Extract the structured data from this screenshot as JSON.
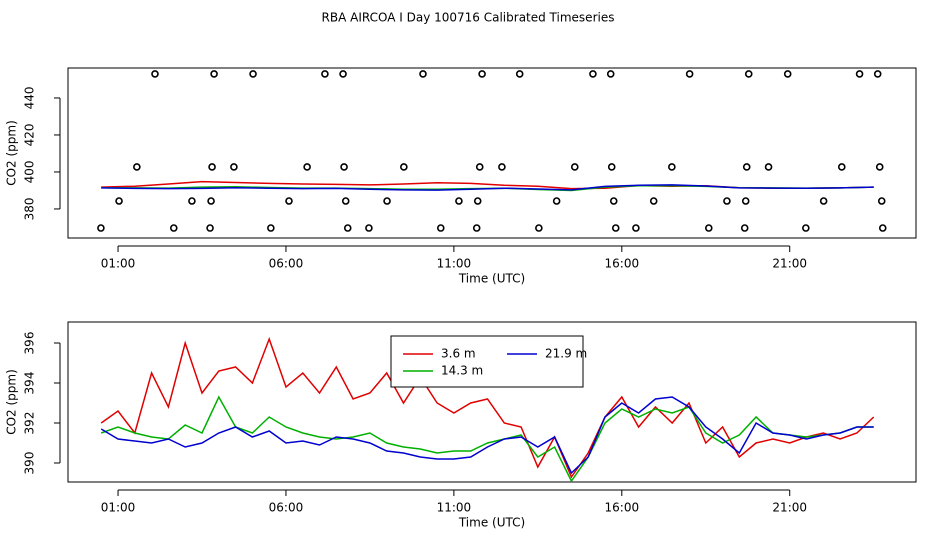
{
  "chart_data": [
    {
      "type": "line",
      "title": "RBA AIRCOA I  Day 100716  Calibrated Timeseries",
      "xlabel": "Time (UTC)",
      "ylabel": "CO2 (ppm)",
      "xlim": [
        -0.49,
        24.76
      ],
      "ylim": [
        364.3,
        456.2
      ],
      "xticks": [
        {
          "value": 1,
          "label": "01:00"
        },
        {
          "value": 6,
          "label": "06:00"
        },
        {
          "value": 11,
          "label": "11:00"
        },
        {
          "value": 16,
          "label": "16:00"
        },
        {
          "value": 21,
          "label": "21:00"
        }
      ],
      "yticks": [
        380,
        400,
        420,
        440
      ],
      "x": [
        0.5,
        1.5,
        2.5,
        3.5,
        4.5,
        5.5,
        6.5,
        7.5,
        8.5,
        9.5,
        10.5,
        11.5,
        12.5,
        13.5,
        14.5,
        15.5,
        16.5,
        17.5,
        18.5,
        19.5,
        20.5,
        21.5,
        22.5,
        23.5
      ],
      "series": [
        {
          "color": "#e00000",
          "values": [
            391.8,
            392.3,
            393.5,
            394.8,
            394.3,
            393.8,
            393.5,
            393.3,
            393.0,
            393.5,
            394.2,
            393.8,
            392.8,
            392.3,
            391.0,
            391.2,
            392.6,
            392.3,
            392.5,
            391.5,
            391.2,
            391.2,
            391.4,
            391.8
          ]
        },
        {
          "color": "#00b000",
          "values": [
            391.5,
            391.4,
            391.3,
            391.8,
            392.0,
            391.6,
            391.3,
            391.3,
            391.0,
            390.7,
            390.6,
            391.0,
            391.2,
            390.5,
            390.0,
            391.8,
            392.5,
            392.6,
            392.2,
            391.5,
            391.4,
            391.3,
            391.4,
            391.8
          ]
        },
        {
          "color": "#0000d0",
          "values": [
            391.4,
            391.1,
            391.0,
            391.1,
            391.5,
            391.2,
            391.0,
            391.1,
            390.6,
            390.3,
            390.2,
            390.6,
            391.2,
            390.8,
            390.3,
            392.2,
            392.8,
            393.0,
            392.4,
            391.4,
            391.3,
            391.2,
            391.4,
            391.8
          ]
        }
      ],
      "markers": {
        "color": "#000000",
        "x": [
          2.1,
          3.86,
          5.02,
          7.16,
          7.7,
          10.08,
          11.84,
          12.96,
          15.14,
          15.67,
          18.02,
          19.78,
          20.94,
          23.08,
          23.62,
          1.56,
          3.8,
          4.45,
          6.63,
          7.73,
          9.51,
          11.77,
          12.43,
          14.6,
          15.7,
          17.49,
          19.72,
          20.37,
          22.55,
          23.68,
          1.03,
          3.2,
          3.77,
          6.09,
          7.78,
          9.01,
          11.15,
          11.71,
          14.06,
          15.76,
          16.95,
          19.13,
          19.69,
          22.01,
          23.74,
          0.49,
          2.66,
          3.74,
          5.55,
          7.84,
          8.47,
          10.61,
          11.68,
          13.53,
          15.82,
          16.42,
          18.59,
          19.66,
          21.48,
          23.77
        ],
        "values": [
          453,
          453,
          453,
          453,
          453,
          453,
          453,
          453,
          453,
          453,
          453,
          453,
          453,
          453,
          453,
          402.7,
          402.7,
          402.7,
          402.7,
          402.7,
          402.7,
          402.7,
          402.7,
          402.7,
          402.7,
          402.7,
          402.7,
          402.7,
          402.7,
          402.7,
          384.3,
          384.3,
          384.3,
          384.3,
          384.3,
          384.3,
          384.3,
          384.3,
          384.3,
          384.3,
          384.3,
          384.3,
          384.3,
          384.3,
          384.3,
          369.7,
          369.7,
          369.7,
          369.7,
          369.7,
          369.7,
          369.7,
          369.7,
          369.7,
          369.7,
          369.7,
          369.7,
          369.7,
          369.7,
          369.7
        ]
      }
    },
    {
      "type": "line",
      "xlabel": "Time (UTC)",
      "ylabel": "CO2 (ppm)",
      "legend": "top-center",
      "xlim": [
        -0.49,
        24.76
      ],
      "ylim": [
        389.05,
        397.05
      ],
      "xticks": [
        {
          "value": 1,
          "label": "01:00"
        },
        {
          "value": 6,
          "label": "06:00"
        },
        {
          "value": 11,
          "label": "11:00"
        },
        {
          "value": 16,
          "label": "16:00"
        },
        {
          "value": 21,
          "label": "21:00"
        }
      ],
      "yticks": [
        390,
        392,
        394,
        396
      ],
      "x": [
        0.5,
        1,
        1.5,
        2,
        2.5,
        3,
        3.5,
        4,
        4.5,
        5,
        5.5,
        6,
        6.5,
        7,
        7.5,
        8,
        8.5,
        9,
        9.5,
        10,
        10.5,
        11,
        11.5,
        12,
        12.5,
        13,
        13.5,
        14,
        14.5,
        15,
        15.5,
        16,
        16.5,
        17,
        17.5,
        18,
        18.5,
        19,
        19.5,
        20,
        20.5,
        21,
        21.5,
        22,
        22.5,
        23,
        23.5
      ],
      "series": [
        {
          "name": "3.6 m",
          "color": "#e00000",
          "values": [
            392.0,
            392.6,
            391.5,
            394.5,
            392.8,
            396.0,
            393.5,
            394.6,
            394.8,
            394.0,
            396.2,
            393.8,
            394.5,
            393.5,
            394.8,
            393.2,
            393.5,
            394.5,
            393.0,
            394.3,
            393.0,
            392.5,
            393.0,
            393.2,
            392.0,
            391.8,
            389.8,
            391.3,
            389.3,
            390.5,
            392.3,
            393.3,
            391.8,
            392.8,
            392.0,
            393.0,
            391.0,
            391.8,
            390.3,
            391.0,
            391.2,
            391.0,
            391.3,
            391.5,
            391.2,
            391.5,
            392.3
          ]
        },
        {
          "name": "14.3 m",
          "color": "#00b000",
          "values": [
            391.5,
            391.8,
            391.5,
            391.3,
            391.2,
            391.9,
            391.5,
            393.3,
            391.8,
            391.5,
            392.3,
            391.8,
            391.5,
            391.3,
            391.2,
            391.3,
            391.5,
            391.0,
            390.8,
            390.7,
            390.5,
            390.6,
            390.6,
            391.0,
            391.2,
            391.4,
            390.3,
            390.8,
            389.1,
            390.3,
            392.0,
            392.7,
            392.3,
            392.7,
            392.5,
            392.8,
            391.5,
            391.0,
            391.4,
            392.3,
            391.5,
            391.4,
            391.3,
            391.4,
            391.5,
            391.8,
            391.8
          ]
        },
        {
          "name": "21.9 m",
          "color": "#0000d0",
          "values": [
            391.7,
            391.2,
            391.1,
            391.0,
            391.2,
            390.8,
            391.0,
            391.5,
            391.8,
            391.3,
            391.6,
            391.0,
            391.1,
            390.9,
            391.3,
            391.2,
            391.0,
            390.6,
            390.5,
            390.3,
            390.2,
            390.2,
            390.3,
            390.8,
            391.2,
            391.3,
            390.8,
            391.3,
            389.5,
            390.3,
            392.3,
            393.0,
            392.5,
            393.2,
            393.3,
            392.8,
            391.8,
            391.2,
            390.5,
            392.0,
            391.5,
            391.4,
            391.2,
            391.4,
            391.5,
            391.8,
            391.8
          ]
        }
      ]
    }
  ]
}
